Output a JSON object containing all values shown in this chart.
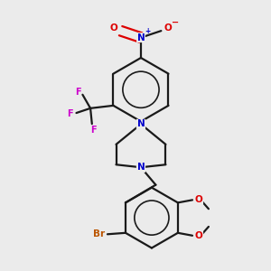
{
  "bg_color": "#ebebeb",
  "bond_color": "#1a1a1a",
  "N_color": "#0000cc",
  "O_color": "#dd0000",
  "F_color": "#cc00cc",
  "Br_color": "#bb5500",
  "line_width": 1.6,
  "fig_w": 3.0,
  "fig_h": 3.0,
  "dpi": 100,
  "xlim": [
    0.0,
    1.0
  ],
  "ylim": [
    0.0,
    1.0
  ]
}
